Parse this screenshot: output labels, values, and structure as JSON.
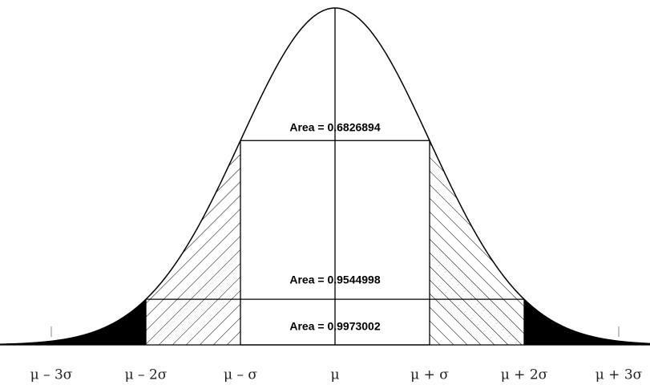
{
  "areas": [
    "Area = 0.6826894",
    "Area = 0.9544998",
    "Area = 0.9973002"
  ],
  "axis_labels": [
    "μ – 3σ",
    "μ – 2σ",
    "μ – σ",
    "μ",
    "μ + σ",
    "μ + 2σ",
    "μ + 3σ"
  ]
}
